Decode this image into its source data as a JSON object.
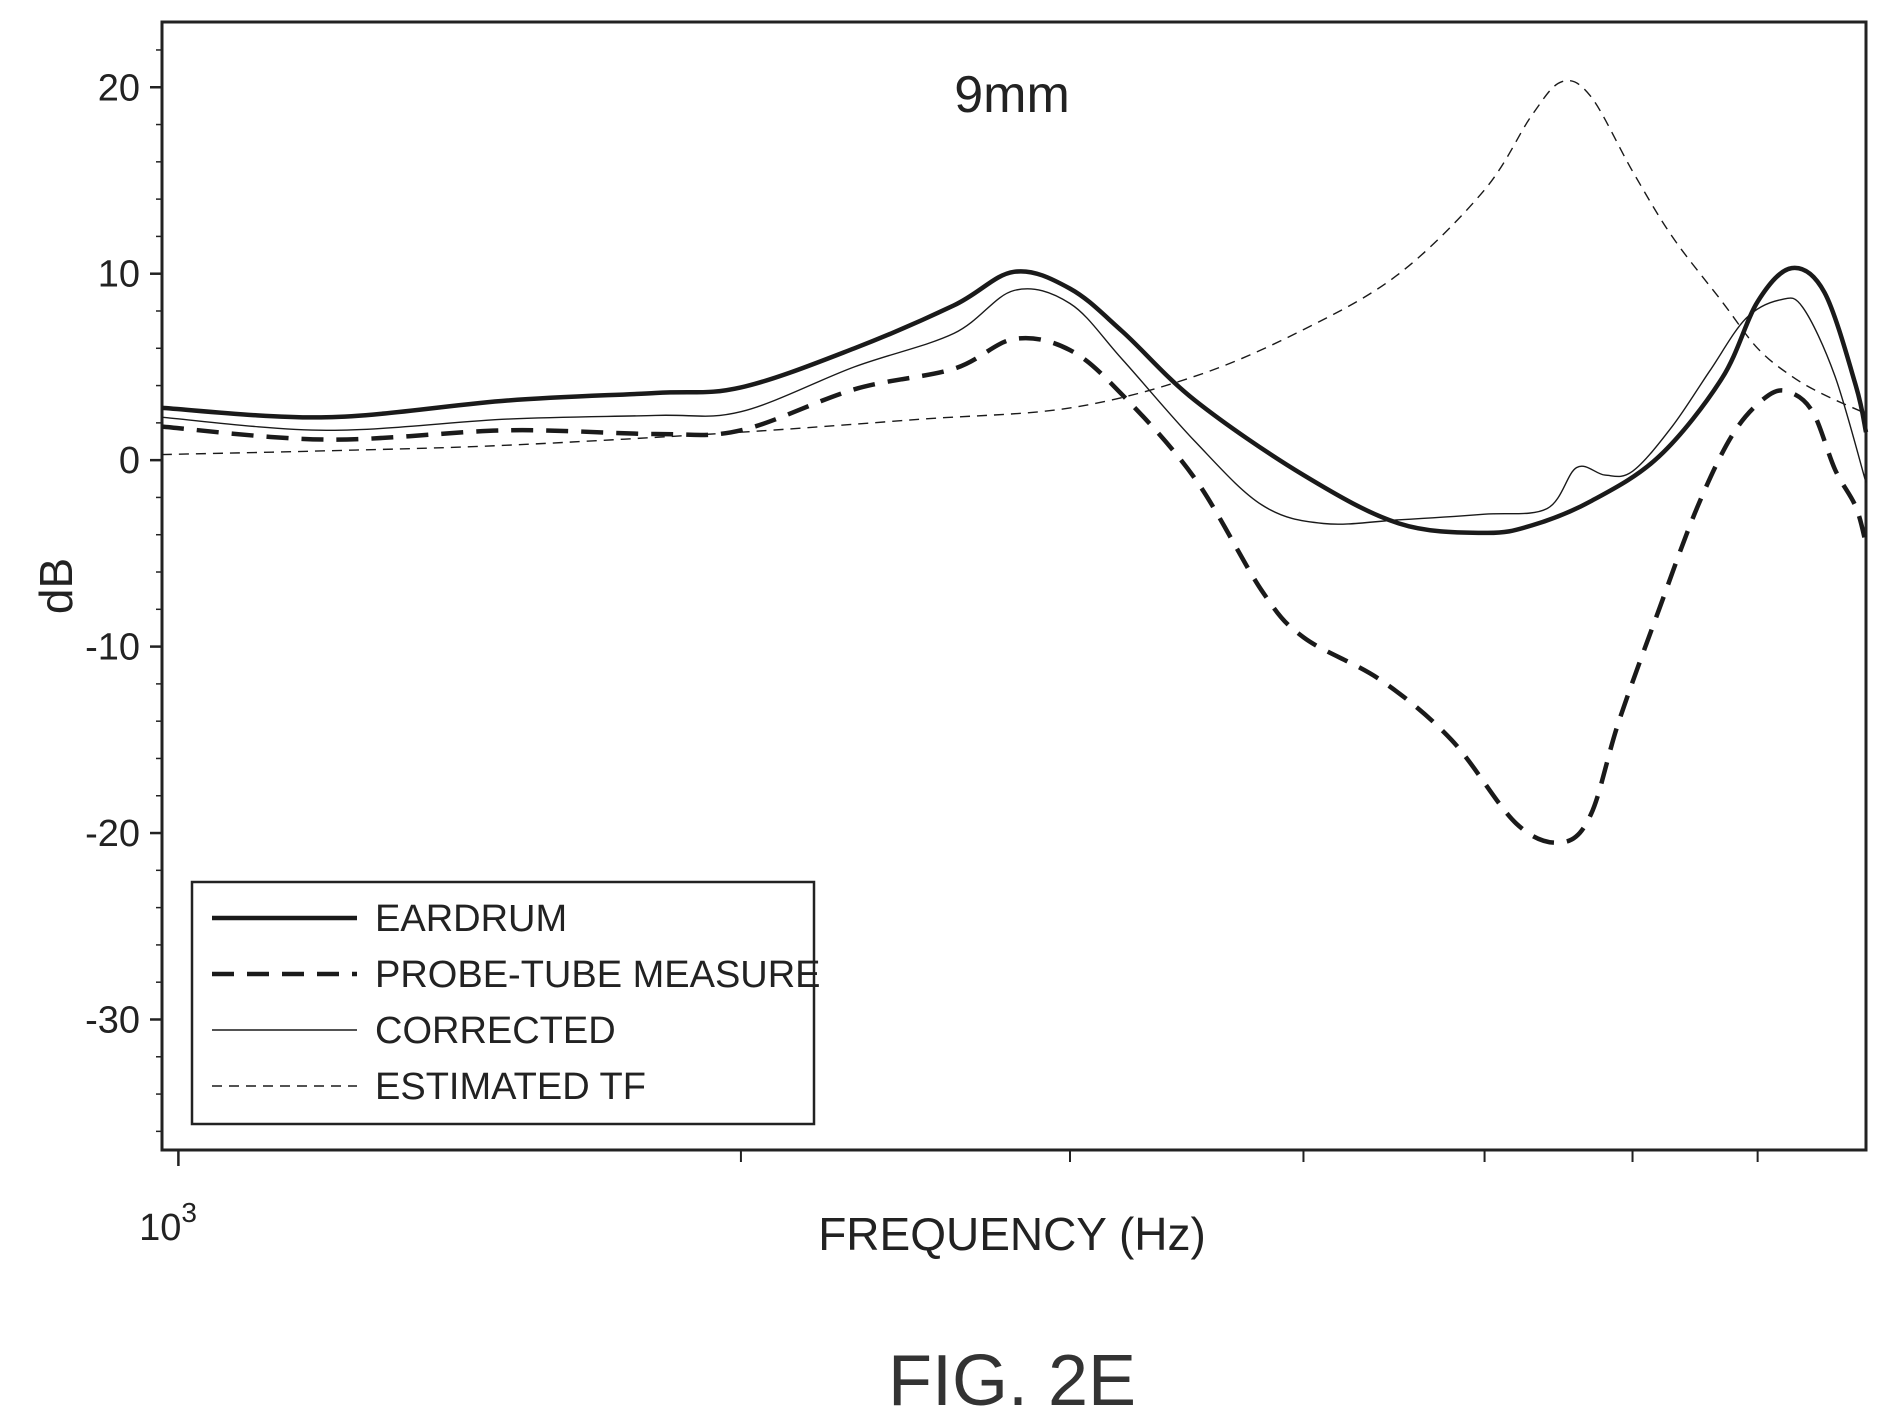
{
  "figure_label": "FIG. 2E",
  "chart_data": {
    "type": "line",
    "title": "9mm",
    "xlabel": "FREQUENCY (Hz)",
    "ylabel": "dB",
    "x_scale": "log",
    "x_tick_base": "10",
    "x_tick_exp": "3",
    "xlim": [
      980,
      8000
    ],
    "ylim": [
      -37,
      23.5
    ],
    "yticks": [
      20,
      10,
      0,
      -10,
      -20,
      -30
    ],
    "ytick_labels": [
      "20",
      "10",
      "0",
      "-10",
      "-20",
      "-30"
    ],
    "x_minor_ticks": [
      2000,
      3000,
      4000,
      5000,
      6000,
      7000
    ],
    "grid": false,
    "legend_position": "bottom-left",
    "series": [
      {
        "name": "EARDRUM",
        "style": "thick-solid",
        "x": [
          980,
          1200,
          1500,
          1800,
          2000,
          2300,
          2600,
          2800,
          3000,
          3200,
          3500,
          4000,
          4500,
          5000,
          5300,
          5700,
          6200,
          6700,
          7000,
          7300,
          7600,
          7900,
          8000
        ],
        "y": [
          2.8,
          2.3,
          3.2,
          3.6,
          3.9,
          6.0,
          8.3,
          10.1,
          9.2,
          6.9,
          3.2,
          -0.8,
          -3.4,
          -3.9,
          -3.5,
          -2.2,
          0.2,
          4.4,
          8.5,
          10.3,
          9.0,
          4.0,
          1.5
        ]
      },
      {
        "name": "PROBE-TUBE MEASURE",
        "style": "thick-dashed",
        "x": [
          980,
          1200,
          1500,
          1800,
          2000,
          2300,
          2600,
          2800,
          3000,
          3200,
          3500,
          3800,
          4000,
          4400,
          4800,
          5200,
          5500,
          5700,
          5900,
          6200,
          6500,
          6800,
          7100,
          7300,
          7500,
          7700,
          7900,
          8000
        ],
        "y": [
          1.8,
          1.1,
          1.6,
          1.4,
          1.6,
          3.8,
          4.9,
          6.5,
          5.9,
          3.5,
          -1.0,
          -7.0,
          -9.5,
          -11.8,
          -15.0,
          -19.5,
          -20.5,
          -19.0,
          -14.0,
          -8.0,
          -2.5,
          1.5,
          3.5,
          3.6,
          2.5,
          -0.5,
          -2.5,
          -4.5
        ]
      },
      {
        "name": "CORRECTED",
        "style": "thin-solid",
        "x": [
          980,
          1200,
          1500,
          1800,
          2000,
          2300,
          2600,
          2800,
          3000,
          3200,
          3500,
          3800,
          4100,
          4500,
          5000,
          5400,
          5600,
          5800,
          6000,
          6300,
          6600,
          6900,
          7200,
          7400,
          7700,
          8000
        ],
        "y": [
          2.3,
          1.6,
          2.2,
          2.4,
          2.6,
          5.0,
          6.8,
          9.1,
          8.4,
          5.4,
          1.0,
          -2.4,
          -3.4,
          -3.2,
          -2.9,
          -2.6,
          -0.4,
          -0.8,
          -0.6,
          1.8,
          4.8,
          7.6,
          8.6,
          8.2,
          4.5,
          -1.2
        ]
      },
      {
        "name": "ESTIMATED TF",
        "style": "thin-dashed",
        "x": [
          980,
          1200,
          1500,
          2000,
          2500,
          3000,
          3500,
          4000,
          4500,
          5000,
          5300,
          5500,
          5700,
          6000,
          6300,
          6700,
          7000,
          7300,
          7600,
          8000
        ],
        "y": [
          0.3,
          0.5,
          0.8,
          1.5,
          2.2,
          2.8,
          4.5,
          7.0,
          10.0,
          14.5,
          18.5,
          20.3,
          19.5,
          15.5,
          12.0,
          8.5,
          6.0,
          4.5,
          3.5,
          2.5
        ]
      }
    ]
  }
}
